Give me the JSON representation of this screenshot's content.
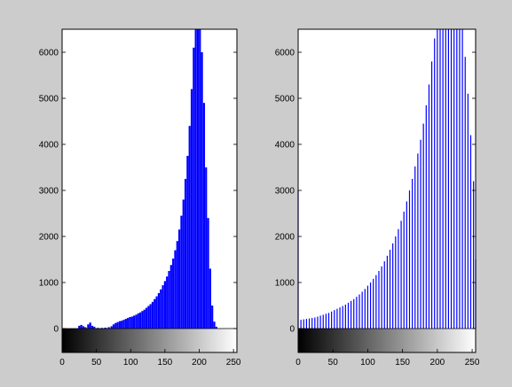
{
  "chart_data": [
    {
      "type": "bar",
      "title": "",
      "xlabel": "",
      "ylabel": "",
      "xlim": [
        0,
        255
      ],
      "ylim": [
        0,
        6500
      ],
      "xticks": [
        0,
        50,
        100,
        150,
        200,
        250
      ],
      "yticks": [
        0,
        1000,
        2000,
        3000,
        4000,
        5000,
        6000
      ],
      "bar_color": "#0000ff",
      "colorbar": "grayscale 0-255",
      "bars": [
        {
          "x": 25,
          "y": 60
        },
        {
          "x": 28,
          "y": 80
        },
        {
          "x": 31,
          "y": 50
        },
        {
          "x": 34,
          "y": 30
        },
        {
          "x": 38,
          "y": 90
        },
        {
          "x": 41,
          "y": 130
        },
        {
          "x": 44,
          "y": 60
        },
        {
          "x": 47,
          "y": 40
        },
        {
          "x": 52,
          "y": 15
        },
        {
          "x": 58,
          "y": 15
        },
        {
          "x": 63,
          "y": 20
        },
        {
          "x": 68,
          "y": 30
        },
        {
          "x": 72,
          "y": 50
        },
        {
          "x": 75,
          "y": 90
        },
        {
          "x": 78,
          "y": 120
        },
        {
          "x": 81,
          "y": 140
        },
        {
          "x": 84,
          "y": 160
        },
        {
          "x": 87,
          "y": 170
        },
        {
          "x": 90,
          "y": 190
        },
        {
          "x": 93,
          "y": 210
        },
        {
          "x": 96,
          "y": 230
        },
        {
          "x": 99,
          "y": 250
        },
        {
          "x": 102,
          "y": 260
        },
        {
          "x": 105,
          "y": 280
        },
        {
          "x": 108,
          "y": 300
        },
        {
          "x": 111,
          "y": 330
        },
        {
          "x": 114,
          "y": 350
        },
        {
          "x": 117,
          "y": 380
        },
        {
          "x": 120,
          "y": 410
        },
        {
          "x": 123,
          "y": 450
        },
        {
          "x": 126,
          "y": 490
        },
        {
          "x": 129,
          "y": 530
        },
        {
          "x": 132,
          "y": 580
        },
        {
          "x": 135,
          "y": 640
        },
        {
          "x": 138,
          "y": 700
        },
        {
          "x": 141,
          "y": 770
        },
        {
          "x": 144,
          "y": 850
        },
        {
          "x": 147,
          "y": 940
        },
        {
          "x": 150,
          "y": 1030
        },
        {
          "x": 153,
          "y": 1130
        },
        {
          "x": 156,
          "y": 1250
        },
        {
          "x": 159,
          "y": 1380
        },
        {
          "x": 162,
          "y": 1520
        },
        {
          "x": 165,
          "y": 1700
        },
        {
          "x": 168,
          "y": 1900
        },
        {
          "x": 171,
          "y": 2150
        },
        {
          "x": 174,
          "y": 2450
        },
        {
          "x": 177,
          "y": 2800
        },
        {
          "x": 180,
          "y": 3250
        },
        {
          "x": 183,
          "y": 3750
        },
        {
          "x": 186,
          "y": 4400
        },
        {
          "x": 189,
          "y": 5200
        },
        {
          "x": 192,
          "y": 6100
        },
        {
          "x": 195,
          "y": 6500
        },
        {
          "x": 198,
          "y": 6500
        },
        {
          "x": 201,
          "y": 6500
        },
        {
          "x": 204,
          "y": 6000
        },
        {
          "x": 207,
          "y": 4900
        },
        {
          "x": 210,
          "y": 3500
        },
        {
          "x": 213,
          "y": 2400
        },
        {
          "x": 216,
          "y": 1300
        },
        {
          "x": 219,
          "y": 500
        },
        {
          "x": 222,
          "y": 150
        },
        {
          "x": 225,
          "y": 40
        }
      ]
    },
    {
      "type": "bar",
      "title": "",
      "xlabel": "",
      "ylabel": "",
      "xlim": [
        0,
        255
      ],
      "ylim": [
        0,
        6500
      ],
      "xticks": [
        0,
        50,
        100,
        150,
        200,
        250
      ],
      "yticks": [
        0,
        1000,
        2000,
        3000,
        4000,
        5000,
        6000
      ],
      "bar_color": "#0000ff",
      "colorbar": "grayscale 0-255",
      "bars": [
        {
          "x": 0,
          "y": 3000
        },
        {
          "x": 4,
          "y": 190
        },
        {
          "x": 8,
          "y": 200
        },
        {
          "x": 12,
          "y": 210
        },
        {
          "x": 16,
          "y": 220
        },
        {
          "x": 20,
          "y": 230
        },
        {
          "x": 24,
          "y": 240
        },
        {
          "x": 28,
          "y": 260
        },
        {
          "x": 32,
          "y": 280
        },
        {
          "x": 36,
          "y": 300
        },
        {
          "x": 40,
          "y": 320
        },
        {
          "x": 44,
          "y": 340
        },
        {
          "x": 48,
          "y": 370
        },
        {
          "x": 52,
          "y": 400
        },
        {
          "x": 56,
          "y": 430
        },
        {
          "x": 60,
          "y": 460
        },
        {
          "x": 64,
          "y": 490
        },
        {
          "x": 68,
          "y": 520
        },
        {
          "x": 72,
          "y": 560
        },
        {
          "x": 76,
          "y": 600
        },
        {
          "x": 80,
          "y": 640
        },
        {
          "x": 84,
          "y": 690
        },
        {
          "x": 88,
          "y": 740
        },
        {
          "x": 92,
          "y": 800
        },
        {
          "x": 96,
          "y": 860
        },
        {
          "x": 100,
          "y": 930
        },
        {
          "x": 104,
          "y": 1000
        },
        {
          "x": 108,
          "y": 1080
        },
        {
          "x": 112,
          "y": 1160
        },
        {
          "x": 116,
          "y": 1250
        },
        {
          "x": 120,
          "y": 1350
        },
        {
          "x": 124,
          "y": 1460
        },
        {
          "x": 128,
          "y": 1580
        },
        {
          "x": 132,
          "y": 1710
        },
        {
          "x": 136,
          "y": 1850
        },
        {
          "x": 140,
          "y": 2000
        },
        {
          "x": 144,
          "y": 2160
        },
        {
          "x": 148,
          "y": 2340
        },
        {
          "x": 152,
          "y": 2540
        },
        {
          "x": 156,
          "y": 2760
        },
        {
          "x": 160,
          "y": 3000
        },
        {
          "x": 164,
          "y": 3250
        },
        {
          "x": 168,
          "y": 3520
        },
        {
          "x": 172,
          "y": 3800
        },
        {
          "x": 176,
          "y": 4100
        },
        {
          "x": 180,
          "y": 4450
        },
        {
          "x": 184,
          "y": 4850
        },
        {
          "x": 188,
          "y": 5300
        },
        {
          "x": 192,
          "y": 5800
        },
        {
          "x": 196,
          "y": 6300
        },
        {
          "x": 200,
          "y": 6500
        },
        {
          "x": 204,
          "y": 6500
        },
        {
          "x": 208,
          "y": 6500
        },
        {
          "x": 212,
          "y": 6500
        },
        {
          "x": 216,
          "y": 6500
        },
        {
          "x": 220,
          "y": 6500
        },
        {
          "x": 224,
          "y": 6500
        },
        {
          "x": 228,
          "y": 6500
        },
        {
          "x": 232,
          "y": 6500
        },
        {
          "x": 236,
          "y": 6500
        },
        {
          "x": 240,
          "y": 5900
        },
        {
          "x": 244,
          "y": 5100
        },
        {
          "x": 248,
          "y": 4200
        },
        {
          "x": 252,
          "y": 3200
        },
        {
          "x": 255,
          "y": 1500
        }
      ]
    }
  ]
}
